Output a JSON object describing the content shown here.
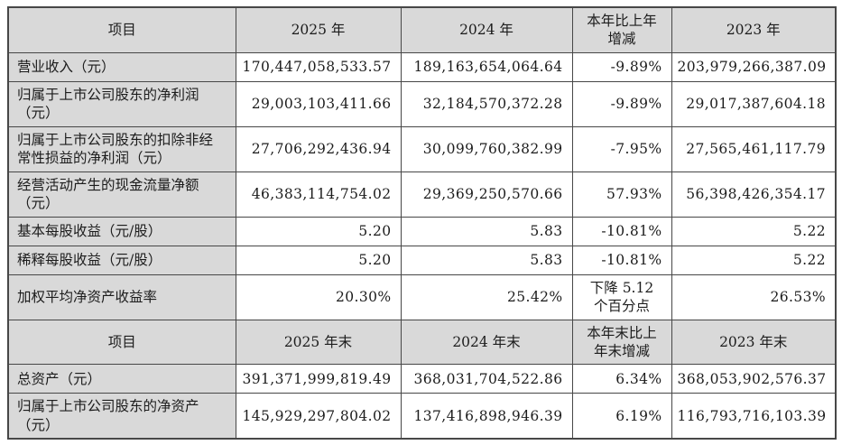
{
  "colors": {
    "header_bg": "#d9d9d9",
    "label_bg": "#d9d9d9",
    "border": "#474747",
    "text": "#1c1c1c"
  },
  "tables": [
    {
      "name": "annual-results",
      "headers": [
        "项目",
        "2025 年",
        "2024 年",
        "本年比上年\n增减",
        "2023 年"
      ],
      "rows": [
        {
          "label": "营业收入（元）",
          "values": [
            "170,447,058,533.57",
            "189,163,654,064.64",
            "-9.89%",
            "203,979,266,387.09"
          ]
        },
        {
          "label": "归属于上市公司股东的净利润（元）",
          "values": [
            "29,003,103,411.66",
            "32,184,570,372.28",
            "-9.89%",
            "29,017,387,604.18"
          ]
        },
        {
          "label": "归属于上市公司股东的扣除非经常性损益的净利润（元）",
          "values": [
            "27,706,292,436.94",
            "30,099,760,382.99",
            "-7.95%",
            "27,565,461,117.79"
          ]
        },
        {
          "label": "经营活动产生的现金流量净额（元）",
          "values": [
            "46,383,114,754.02",
            "29,369,250,570.66",
            "57.93%",
            "56,398,426,354.17"
          ]
        },
        {
          "label": "基本每股收益（元/股）",
          "values": [
            "5.20",
            "5.83",
            "-10.81%",
            "5.22"
          ]
        },
        {
          "label": "稀释每股收益（元/股）",
          "values": [
            "5.20",
            "5.83",
            "-10.81%",
            "5.22"
          ]
        },
        {
          "label": "加权平均净资产收益率",
          "values": [
            "20.30%",
            "25.42%",
            "下降 5.12\n个百分点",
            "26.53%"
          ]
        }
      ]
    },
    {
      "name": "period-end",
      "headers": [
        "项目",
        "2025 年末",
        "2024 年末",
        "本年末比上\n年末增减",
        "2023 年末"
      ],
      "rows": [
        {
          "label": "总资产（元）",
          "values": [
            "391,371,999,819.49",
            "368,031,704,522.86",
            "6.34%",
            "368,053,902,576.37"
          ]
        },
        {
          "label": "归属于上市公司股东的净资产（元）",
          "values": [
            "145,929,297,804.02",
            "137,416,898,946.39",
            "6.19%",
            "116,793,716,103.39"
          ]
        }
      ]
    }
  ]
}
